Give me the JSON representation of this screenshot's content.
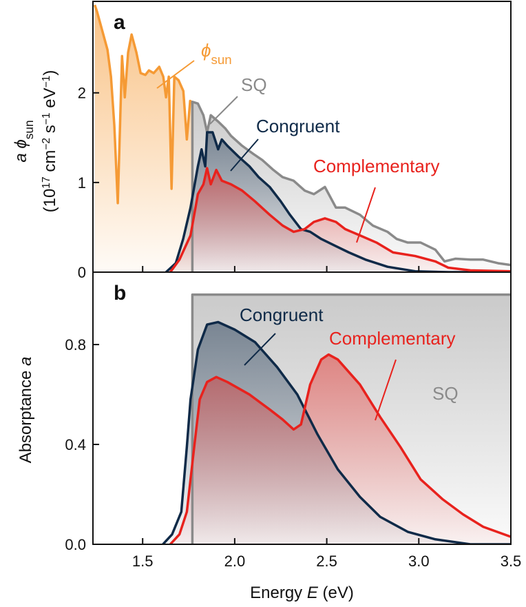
{
  "chart_data": [
    {
      "type": "line",
      "label": "a",
      "ylabel": [
        [
          {
            "text": "a ϕ",
            "style": "italic"
          },
          {
            "text": "sun",
            "style": "sub"
          }
        ],
        [
          {
            "text": "(10"
          },
          {
            "text": "17",
            "style": "sup"
          },
          {
            "text": " cm"
          },
          {
            "text": "−2",
            "style": "sup"
          },
          {
            "text": " s"
          },
          {
            "text": "−1",
            "style": "sup"
          },
          {
            "text": " eV"
          },
          {
            "text": "−1",
            "style": "sup"
          },
          {
            "text": ")"
          }
        ]
      ],
      "xlim": [
        1.23,
        3.5
      ],
      "ylim": [
        0,
        3.02
      ],
      "xticks": [
        1.5,
        2,
        2.5,
        3,
        3.5
      ],
      "yticks": [
        0,
        1,
        2
      ],
      "series": [
        {
          "name": [
            {
              "text": "ϕ",
              "style": "italic"
            },
            {
              "text": "sun",
              "style": "sub"
            }
          ],
          "color": "#f59a35",
          "x": [
            1.24,
            1.253,
            1.309,
            1.328,
            1.346,
            1.365,
            1.388,
            1.403,
            1.421,
            1.44,
            1.466,
            1.489,
            1.515,
            1.534,
            1.56,
            1.59,
            1.612,
            1.627,
            1.642,
            1.657,
            1.672,
            1.695,
            1.721,
            1.74,
            1.758,
            1.777
          ],
          "values": [
            2.98,
            2.9,
            2.48,
            2.18,
            1.64,
            0.77,
            2.41,
            1.95,
            2.45,
            2.65,
            2.45,
            2.22,
            2.2,
            2.25,
            2.22,
            2.29,
            2.18,
            1.95,
            2.18,
            0.93,
            2.18,
            2.14,
            2.02,
            1.48,
            1.91,
            1.88
          ]
        },
        {
          "name": "SQ",
          "color": "#8a8a8a",
          "x": [
            1.77,
            1.77,
            1.8,
            1.83,
            1.85,
            1.87,
            1.91,
            1.95,
            1.98,
            2.04,
            2.1,
            2.15,
            2.21,
            2.26,
            2.32,
            2.38,
            2.43,
            2.49,
            2.55,
            2.6,
            2.68,
            2.75,
            2.83,
            2.88,
            2.94,
            3.01,
            3.09,
            3.14,
            3.2,
            3.28,
            3.35,
            3.43,
            3.5
          ],
          "values": [
            0,
            1.9,
            1.88,
            1.75,
            1.56,
            1.75,
            1.68,
            1.6,
            1.52,
            1.41,
            1.32,
            1.25,
            1.14,
            1.06,
            1.02,
            0.91,
            0.87,
            0.95,
            0.72,
            0.72,
            0.64,
            0.52,
            0.45,
            0.37,
            0.33,
            0.33,
            0.25,
            0.12,
            0.15,
            0.14,
            0.14,
            0.1,
            0.08
          ]
        },
        {
          "name": "Congruent",
          "color": "#0f2a48",
          "x": [
            1.627,
            1.68,
            1.72,
            1.76,
            1.8,
            1.82,
            1.84,
            1.85,
            1.88,
            1.91,
            1.93,
            1.96,
            2.02,
            2.08,
            2.13,
            2.19,
            2.25,
            2.3,
            2.36,
            2.41,
            2.47,
            2.55,
            2.62,
            2.71,
            2.83,
            2.98,
            3.16,
            3.5
          ],
          "values": [
            0,
            0.1,
            0.37,
            0.72,
            1.18,
            1.37,
            1.18,
            1.56,
            1.56,
            1.37,
            1.48,
            1.41,
            1.29,
            1.18,
            1.06,
            0.95,
            0.79,
            0.64,
            0.48,
            0.45,
            0.37,
            0.29,
            0.22,
            0.14,
            0.06,
            0.01,
            0,
            0
          ]
        },
        {
          "name": "Complementary",
          "color": "#e8221d",
          "x": [
            1.65,
            1.7,
            1.76,
            1.8,
            1.83,
            1.85,
            1.87,
            1.9,
            1.93,
            1.98,
            2.04,
            2.11,
            2.19,
            2.26,
            2.32,
            2.38,
            2.43,
            2.49,
            2.55,
            2.6,
            2.68,
            2.77,
            2.86,
            2.98,
            3.09,
            3.16,
            3.28,
            3.5
          ],
          "values": [
            0,
            0.14,
            0.41,
            0.87,
            0.98,
            1.16,
            0.98,
            1.14,
            1.02,
            0.98,
            0.91,
            0.79,
            0.64,
            0.52,
            0.45,
            0.48,
            0.56,
            0.6,
            0.56,
            0.48,
            0.41,
            0.33,
            0.22,
            0.18,
            0.12,
            0.05,
            0.02,
            0.01
          ]
        }
      ]
    },
    {
      "type": "line",
      "label": "b",
      "ylabel": [
        [
          {
            "text": "Absorptance "
          },
          {
            "text": "a",
            "style": "italic"
          }
        ]
      ],
      "xlabel": [
        {
          "text": "Energy "
        },
        {
          "text": "E",
          "style": "italic"
        },
        {
          "text": " (eV)"
        }
      ],
      "xlim": [
        1.23,
        3.5
      ],
      "ylim": [
        0,
        1.09
      ],
      "xticks": [
        1.5,
        {
          "value": 2,
          "label": "2.0"
        },
        2.5,
        {
          "value": 3,
          "label": "3.0"
        },
        3.5
      ],
      "yticks": [
        {
          "value": 0,
          "label": "0.0"
        },
        0.4,
        0.8
      ],
      "series": [
        {
          "name": "SQ",
          "color": "#8a8a8a",
          "x": [
            1.77,
            1.77,
            3.5
          ],
          "values": [
            0,
            1,
            1
          ]
        },
        {
          "name": "Congruent",
          "color": "#0f2a48",
          "x": [
            1.61,
            1.66,
            1.71,
            1.74,
            1.76,
            1.8,
            1.85,
            1.91,
            2.0,
            2.11,
            2.23,
            2.34,
            2.45,
            2.56,
            2.68,
            2.79,
            2.94,
            3.09,
            3.28,
            3.5
          ],
          "values": [
            0,
            0.04,
            0.13,
            0.39,
            0.58,
            0.78,
            0.88,
            0.89,
            0.86,
            0.81,
            0.71,
            0.6,
            0.44,
            0.3,
            0.19,
            0.11,
            0.05,
            0.02,
            0,
            0
          ]
        },
        {
          "name": "Complementary",
          "color": "#e8221d",
          "x": [
            1.65,
            1.7,
            1.74,
            1.78,
            1.81,
            1.85,
            1.9,
            1.96,
            2.08,
            2.19,
            2.26,
            2.32,
            2.36,
            2.41,
            2.47,
            2.51,
            2.56,
            2.68,
            2.79,
            2.9,
            3.01,
            3.13,
            3.24,
            3.35,
            3.5
          ],
          "values": [
            0,
            0.04,
            0.13,
            0.39,
            0.58,
            0.65,
            0.67,
            0.65,
            0.6,
            0.54,
            0.5,
            0.46,
            0.48,
            0.64,
            0.74,
            0.76,
            0.74,
            0.64,
            0.51,
            0.39,
            0.26,
            0.18,
            0.12,
            0.07,
            0.03
          ]
        }
      ]
    }
  ]
}
